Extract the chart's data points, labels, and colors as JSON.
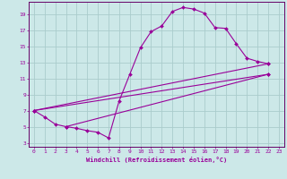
{
  "xlabel": "Windchill (Refroidissement éolien,°C)",
  "background_color": "#cce8e8",
  "grid_color": "#aacccc",
  "line_color": "#990099",
  "spine_color": "#660066",
  "xlim": [
    -0.5,
    23.5
  ],
  "ylim": [
    2.5,
    20.5
  ],
  "xticks": [
    0,
    1,
    2,
    3,
    4,
    5,
    6,
    7,
    8,
    9,
    10,
    11,
    12,
    13,
    14,
    15,
    16,
    17,
    18,
    19,
    20,
    21,
    22,
    23
  ],
  "yticks": [
    3,
    5,
    7,
    9,
    11,
    13,
    15,
    17,
    19
  ],
  "series": [
    {
      "x": [
        0,
        1,
        2,
        3,
        4,
        5,
        6,
        7,
        8,
        9,
        10,
        11,
        12,
        13,
        14,
        15,
        16,
        17,
        18,
        19,
        20,
        21,
        22
      ],
      "y": [
        7.0,
        6.2,
        5.3,
        5.0,
        4.8,
        4.5,
        4.3,
        3.6,
        8.2,
        11.5,
        14.8,
        16.8,
        17.5,
        19.3,
        19.8,
        19.6,
        19.1,
        17.3,
        17.2,
        15.3,
        13.5,
        13.1,
        12.8
      ]
    },
    {
      "x": [
        0,
        22
      ],
      "y": [
        7.0,
        12.8
      ]
    },
    {
      "x": [
        0,
        22
      ],
      "y": [
        7.0,
        11.5
      ]
    },
    {
      "x": [
        3,
        22
      ],
      "y": [
        5.0,
        11.5
      ]
    }
  ]
}
